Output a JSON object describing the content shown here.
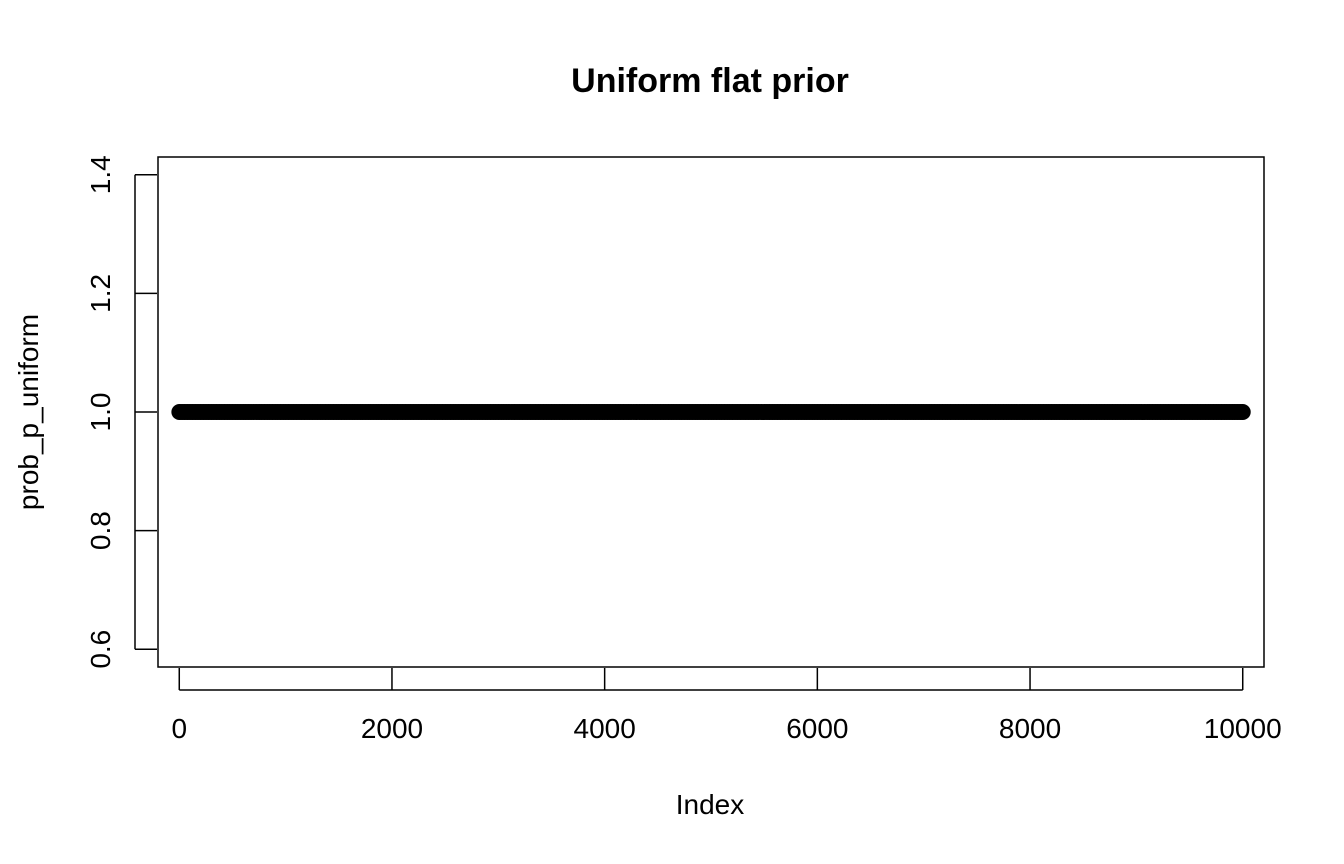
{
  "chart_data": {
    "type": "scatter",
    "title": "Uniform flat prior",
    "xlabel": "Index",
    "ylabel": "prob_p_uniform",
    "xlim": [
      -200,
      10200
    ],
    "ylim": [
      0.57,
      1.43
    ],
    "x_ticks": [
      0,
      2000,
      4000,
      6000,
      8000,
      10000
    ],
    "x_tick_labels": [
      "0",
      "2000",
      "4000",
      "6000",
      "8000",
      "10000"
    ],
    "y_ticks": [
      0.6,
      0.8,
      1.0,
      1.2,
      1.4
    ],
    "y_tick_labels": [
      "0.6",
      "0.8",
      "1.0",
      "1.2",
      "1.4"
    ],
    "grid": false,
    "series": [
      {
        "x_start": 1,
        "x_end": 10000,
        "y": 1.0,
        "point_count": 10000
      }
    ],
    "colors": {
      "points": "#000000",
      "axes": "#000000"
    }
  }
}
